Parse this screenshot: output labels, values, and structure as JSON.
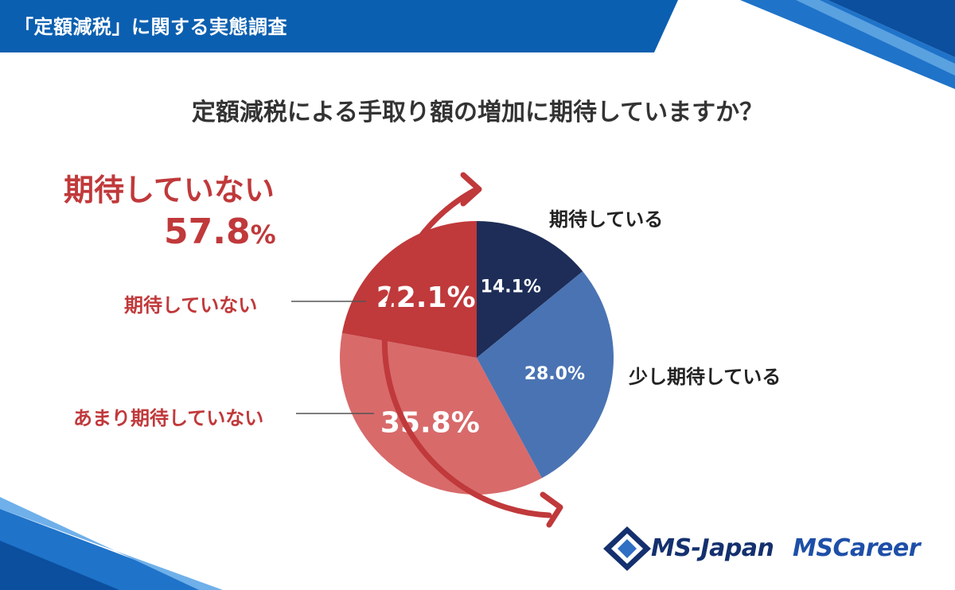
{
  "header": {
    "title": "「定額減税」に関する実態調査"
  },
  "question": "定額減税による手取り額の増加に期待していますか？",
  "highlight": {
    "label": "期待していない",
    "value": "57.8",
    "unit": "%"
  },
  "labels": {
    "expect": "期待している",
    "somewhat_expect": "少し期待している",
    "not_expect": "期待していない",
    "not_much_expect": "あまり期待していない"
  },
  "logos": {
    "ms_japan": "MS-Japan",
    "ms_career": "MSCareer"
  },
  "colors": {
    "navy": "#1d2d57",
    "blue": "#4a73b3",
    "red": "#c0393b",
    "pink": "#d86a6a",
    "accent": "#c0393b"
  },
  "chart_data": {
    "type": "pie",
    "title": "定額減税による手取り額の増加に期待していますか？",
    "categories": [
      "期待している",
      "少し期待している",
      "あまり期待していない",
      "期待していない"
    ],
    "values": [
      14.1,
      28.0,
      35.8,
      22.1
    ],
    "display_labels": [
      "14.1%",
      "28.0%",
      "35.8%",
      "22.1%"
    ],
    "colors": [
      "#1d2d57",
      "#4a73b3",
      "#d86a6a",
      "#c0393b"
    ]
  }
}
